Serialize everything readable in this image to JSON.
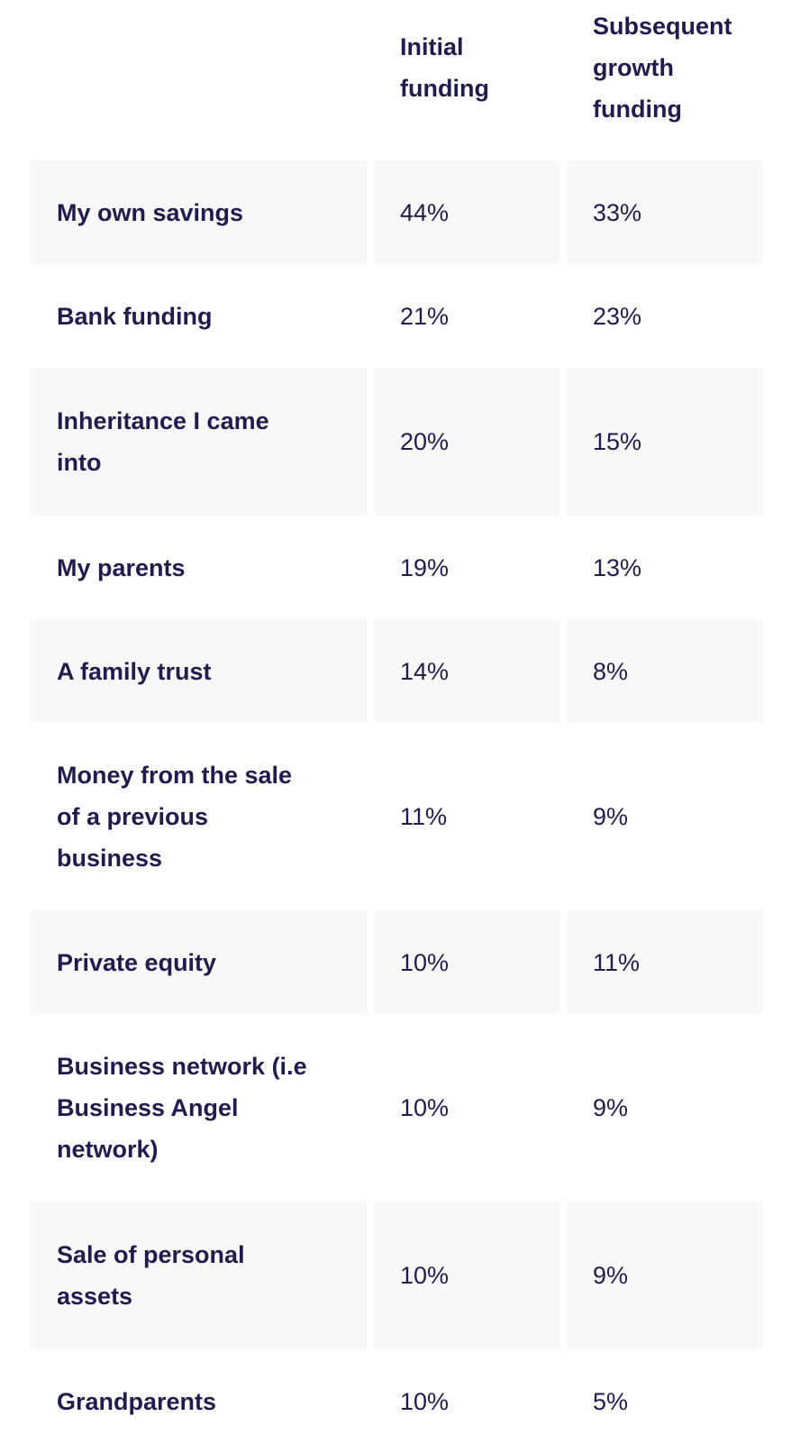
{
  "table": {
    "headers": {
      "label_col": "",
      "initial_col": "Initial\nfunding",
      "subsequent_col": "Subsequent\ngrowth\nfunding"
    },
    "rows": [
      {
        "label": "My own savings",
        "initial": "44%",
        "subsequent": "33%"
      },
      {
        "label": "Bank funding",
        "initial": "21%",
        "subsequent": "23%"
      },
      {
        "label": "Inheritance I came\ninto",
        "initial": "20%",
        "subsequent": "15%"
      },
      {
        "label": "My parents",
        "initial": "19%",
        "subsequent": "13%"
      },
      {
        "label": "A family trust",
        "initial": "14%",
        "subsequent": "8%"
      },
      {
        "label": "Money from the sale\nof a previous\nbusiness",
        "initial": "11%",
        "subsequent": "9%"
      },
      {
        "label": "Private equity",
        "initial": "10%",
        "subsequent": "11%"
      },
      {
        "label": "Business network (i.e\nBusiness Angel\nnetwork)",
        "initial": "10%",
        "subsequent": "9%"
      },
      {
        "label": "Sale of personal\nassets",
        "initial": "10%",
        "subsequent": "9%"
      },
      {
        "label": "Grandparents",
        "initial": "10%",
        "subsequent": "5%"
      }
    ]
  },
  "colors": {
    "text_navy": "#201d4d",
    "row_alt_background": "#f8f8f8",
    "page_background": "#ffffff"
  },
  "chart_data": {
    "type": "table",
    "title": "",
    "categories": [
      "My own savings",
      "Bank funding",
      "Inheritance I came into",
      "My parents",
      "A family trust",
      "Money from the sale of a previous business",
      "Private equity",
      "Business network (i.e Business Angel network)",
      "Sale of personal assets",
      "Grandparents"
    ],
    "series": [
      {
        "name": "Initial funding",
        "values": [
          44,
          21,
          20,
          19,
          14,
          11,
          10,
          10,
          10,
          10
        ]
      },
      {
        "name": "Subsequent growth funding",
        "values": [
          33,
          23,
          15,
          13,
          8,
          9,
          11,
          9,
          9,
          5
        ]
      }
    ],
    "unit": "%"
  }
}
